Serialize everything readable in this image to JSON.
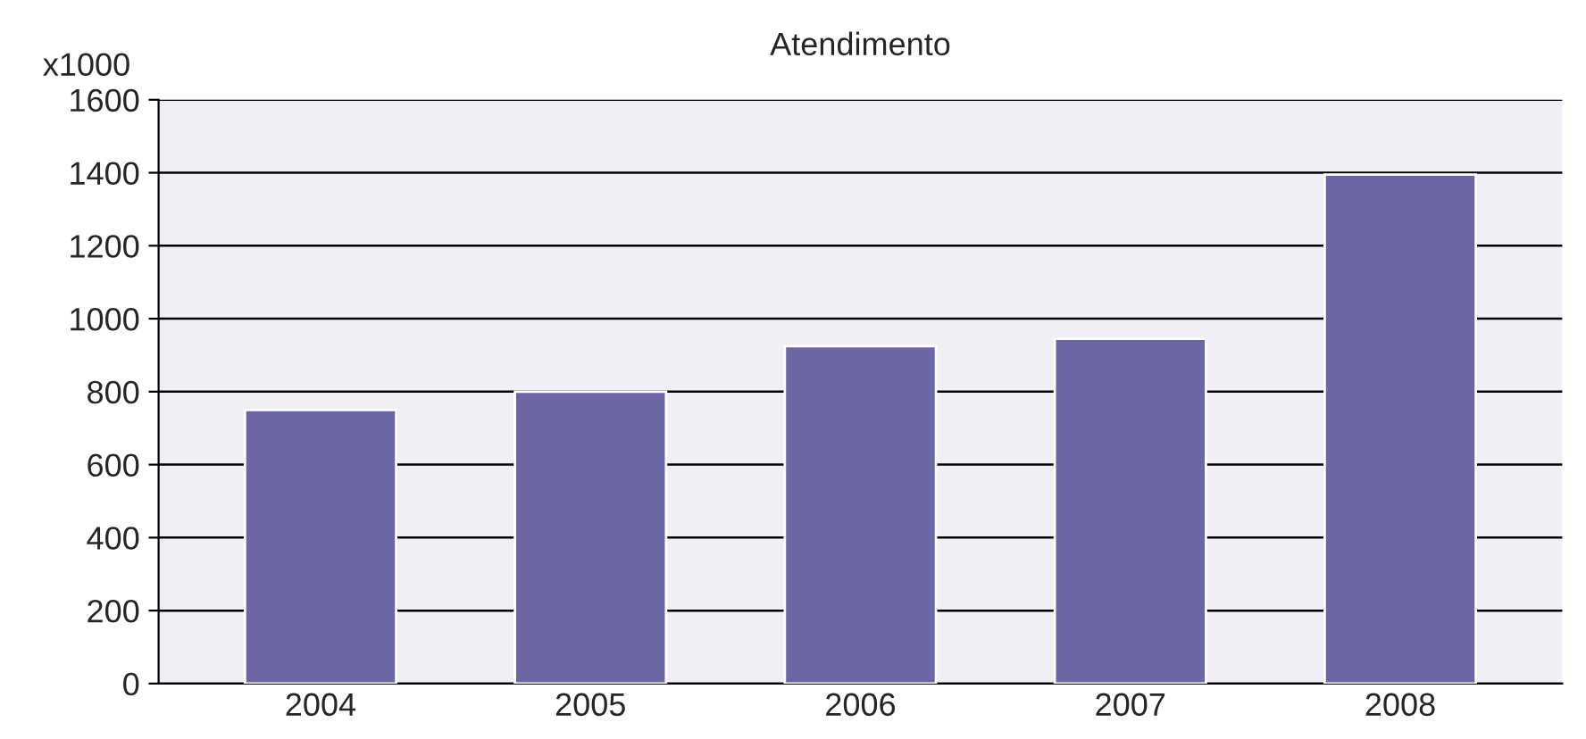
{
  "chart_data": {
    "type": "bar",
    "title": "Atendimento",
    "ylabel": "x1000",
    "categories": [
      "2004",
      "2005",
      "2006",
      "2007",
      "2008"
    ],
    "values": [
      750,
      800,
      925,
      945,
      1395
    ],
    "color": "#6b67a5",
    "ylim": [
      0,
      1600
    ],
    "yticks": [
      0,
      200,
      400,
      600,
      800,
      1000,
      1200,
      1400,
      1600
    ],
    "grid": "y"
  }
}
